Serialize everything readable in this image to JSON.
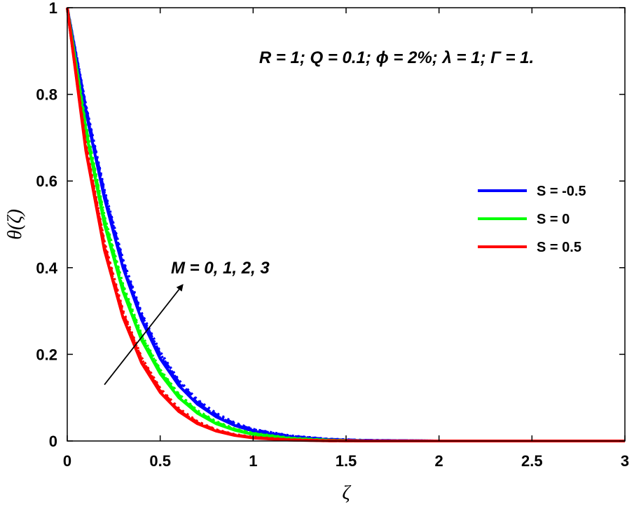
{
  "chart_data": {
    "type": "line",
    "title": "",
    "xlabel": "ζ",
    "ylabel": "θ(ζ)",
    "xlim": [
      0,
      3
    ],
    "ylim": [
      0,
      1
    ],
    "x_ticks": [
      "0",
      "0.5",
      "1",
      "1.5",
      "2",
      "2.5",
      "3"
    ],
    "y_ticks": [
      "0",
      "0.2",
      "0.4",
      "0.6",
      "0.8",
      "1"
    ],
    "grid": false,
    "legend_position": "right",
    "annotations": {
      "params": "R = 1; Q = 0.1; ϕ = 2%; λ = 1; Γ = 1.",
      "arrow_label": "M = 0, 1, 2, 3",
      "arrow_from": [
        0.2,
        0.13
      ],
      "arrow_to": [
        0.62,
        0.36
      ]
    },
    "line_styles": [
      "solid",
      "dashed",
      "dashdot",
      "dotted"
    ],
    "series": [
      {
        "name": "S = -0.5",
        "color": "#0000ff",
        "x": [
          0,
          0.1,
          0.2,
          0.3,
          0.4,
          0.5,
          0.6,
          0.7,
          0.8,
          0.9,
          1.0,
          1.2,
          1.4,
          1.6,
          2.0,
          2.5,
          3.0
        ],
        "families": [
          [
            1,
            0.76,
            0.56,
            0.4,
            0.28,
            0.19,
            0.128,
            0.085,
            0.056,
            0.036,
            0.023,
            0.009,
            0.003,
            0.001,
            0,
            0,
            0
          ],
          [
            1,
            0.765,
            0.565,
            0.405,
            0.285,
            0.195,
            0.132,
            0.088,
            0.058,
            0.038,
            0.024,
            0.01,
            0.0035,
            0.001,
            0,
            0,
            0
          ],
          [
            1,
            0.77,
            0.572,
            0.412,
            0.29,
            0.2,
            0.136,
            0.092,
            0.061,
            0.04,
            0.026,
            0.011,
            0.004,
            0.0015,
            0,
            0,
            0
          ],
          [
            1,
            0.775,
            0.578,
            0.418,
            0.295,
            0.205,
            0.14,
            0.095,
            0.064,
            0.042,
            0.027,
            0.012,
            0.0045,
            0.0015,
            0,
            0,
            0
          ]
        ]
      },
      {
        "name": "S = 0",
        "color": "#00ff00",
        "x": [
          0,
          0.1,
          0.2,
          0.3,
          0.4,
          0.5,
          0.6,
          0.7,
          0.8,
          0.9,
          1.0,
          1.2,
          1.4,
          1.6,
          2.0,
          2.5,
          3.0
        ],
        "families": [
          [
            1,
            0.715,
            0.5,
            0.345,
            0.233,
            0.155,
            0.1,
            0.064,
            0.04,
            0.025,
            0.015,
            0.005,
            0.0015,
            0,
            0,
            0,
            0
          ],
          [
            1,
            0.72,
            0.506,
            0.35,
            0.237,
            0.158,
            0.103,
            0.066,
            0.042,
            0.026,
            0.016,
            0.006,
            0.002,
            0,
            0,
            0,
            0
          ],
          [
            1,
            0.725,
            0.512,
            0.355,
            0.241,
            0.161,
            0.106,
            0.068,
            0.043,
            0.027,
            0.017,
            0.006,
            0.002,
            0,
            0,
            0,
            0
          ],
          [
            1,
            0.73,
            0.518,
            0.36,
            0.245,
            0.164,
            0.108,
            0.07,
            0.045,
            0.028,
            0.018,
            0.007,
            0.0025,
            0,
            0,
            0,
            0
          ]
        ]
      },
      {
        "name": "S = 0.5",
        "color": "#ff0000",
        "x": [
          0,
          0.1,
          0.2,
          0.3,
          0.4,
          0.5,
          0.6,
          0.7,
          0.8,
          0.9,
          1.0,
          1.2,
          1.4,
          1.6,
          2.0,
          2.5,
          3.0
        ],
        "families": [
          [
            1,
            0.67,
            0.44,
            0.285,
            0.18,
            0.112,
            0.068,
            0.04,
            0.023,
            0.013,
            0.007,
            0.002,
            0.0005,
            0,
            0,
            0,
            0
          ],
          [
            1,
            0.675,
            0.446,
            0.29,
            0.184,
            0.115,
            0.07,
            0.042,
            0.024,
            0.014,
            0.008,
            0.0025,
            0.0005,
            0,
            0,
            0,
            0
          ],
          [
            1,
            0.68,
            0.452,
            0.295,
            0.188,
            0.118,
            0.072,
            0.043,
            0.025,
            0.014,
            0.008,
            0.0025,
            0.001,
            0,
            0,
            0,
            0
          ],
          [
            1,
            0.685,
            0.458,
            0.3,
            0.192,
            0.121,
            0.075,
            0.045,
            0.026,
            0.015,
            0.009,
            0.003,
            0.001,
            0,
            0,
            0,
            0
          ]
        ]
      }
    ]
  }
}
